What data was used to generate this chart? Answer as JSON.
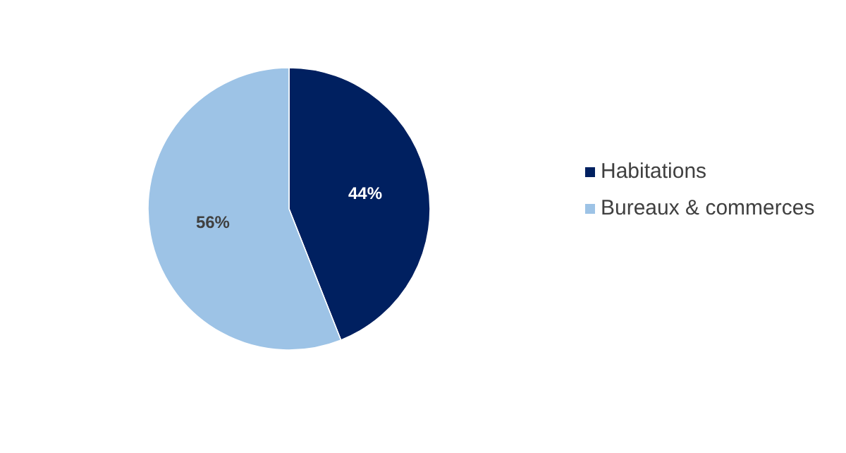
{
  "chart_data": {
    "type": "pie",
    "categories": [
      "Habitations",
      "Bureaux & commerces"
    ],
    "values": [
      44,
      56
    ],
    "colors": [
      "#002060",
      "#9dc3e6"
    ],
    "value_labels": [
      "44%",
      "56%"
    ],
    "legend": "right"
  }
}
